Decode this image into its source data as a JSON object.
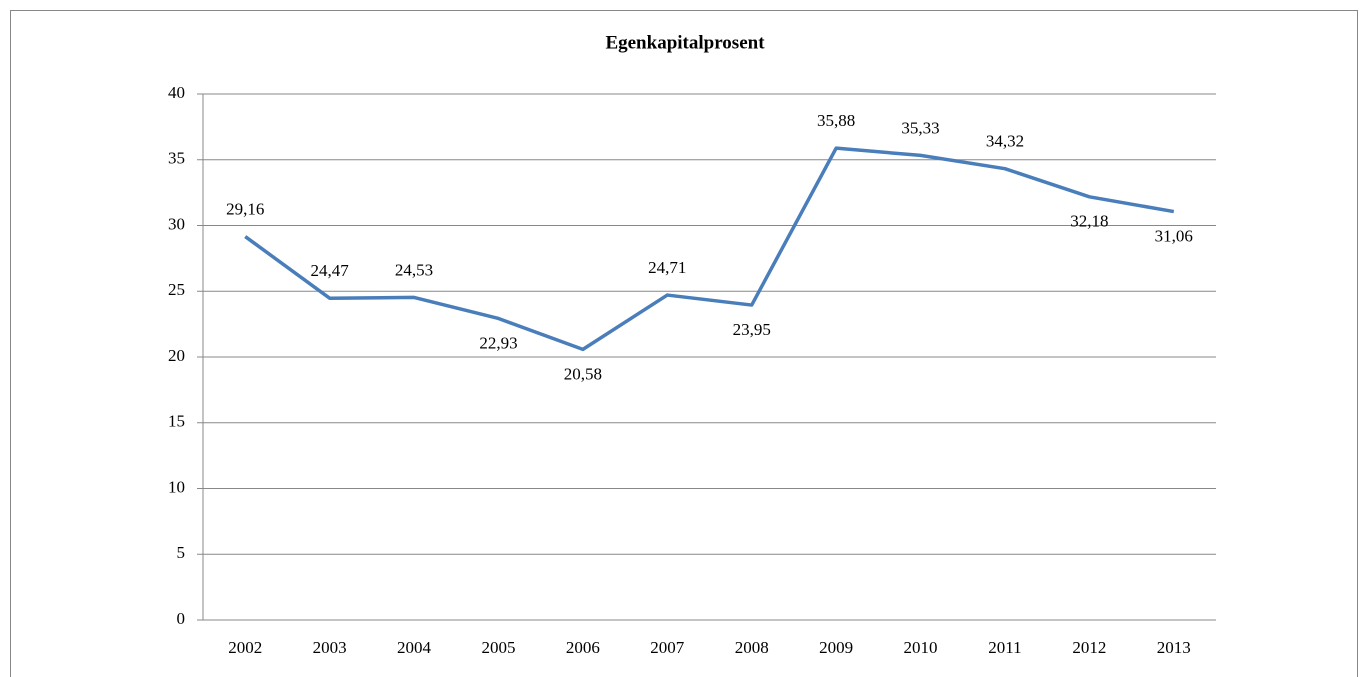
{
  "chart_data": {
    "type": "line",
    "title": "Egenkapitalprosent",
    "categories": [
      "2002",
      "2003",
      "2004",
      "2005",
      "2006",
      "2007",
      "2008",
      "2009",
      "2010",
      "2011",
      "2012",
      "2013"
    ],
    "values": [
      29.16,
      24.47,
      24.53,
      22.93,
      20.58,
      24.71,
      23.95,
      35.88,
      35.33,
      34.32,
      32.18,
      31.06
    ],
    "value_labels": [
      "29,16",
      "24,47",
      "24,53",
      "22,93",
      "20,58",
      "24,71",
      "23,95",
      "35,88",
      "35,33",
      "34,32",
      "32,18",
      "31,06"
    ],
    "color": "#4a7ebb",
    "ylim": [
      0,
      40
    ],
    "yticks": [
      0,
      5,
      10,
      15,
      20,
      25,
      30,
      35,
      40
    ],
    "grid": true
  }
}
